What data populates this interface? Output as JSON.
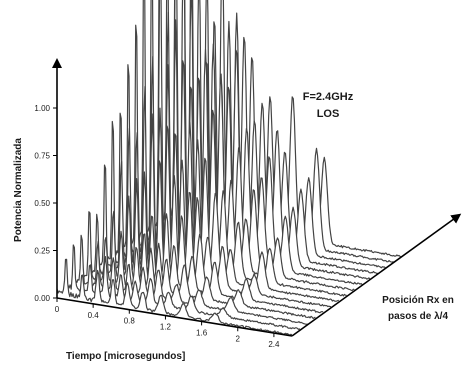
{
  "chart_data": {
    "type": "line",
    "subtype": "3d-waterfall",
    "title": "",
    "annotation_lines": [
      "F=2.4GHz",
      "LOS"
    ],
    "ylabel": "Potencia Normalizada",
    "xlabel": "Tiempo [microsegundos]",
    "zlabel_lines": [
      "Posición Rx en",
      "pasos de λ/4"
    ],
    "x_ticks": [
      "0",
      "0.4",
      "0.8",
      "1.2",
      "1.6",
      "2",
      "2.4"
    ],
    "y_ticks": [
      "0.00",
      "0.25",
      "0.50",
      "0.75",
      "1.00"
    ],
    "xlim": [
      0,
      2.6
    ],
    "ylim": [
      0,
      1.0
    ],
    "grid": false,
    "legend": "none",
    "series_count": 15,
    "peak_times_us": [
      0.1,
      0.28,
      0.45,
      0.62,
      0.78,
      0.95,
      1.15,
      1.4,
      1.75
    ],
    "series_peak_power": [
      0.18,
      0.22,
      0.28,
      0.35,
      0.45,
      0.58,
      0.72,
      0.9,
      1.1,
      1.35,
      1.55,
      1.75,
      1.85,
      1.9,
      1.95
    ],
    "line_color": "#444444",
    "axis_color": "#000000"
  }
}
